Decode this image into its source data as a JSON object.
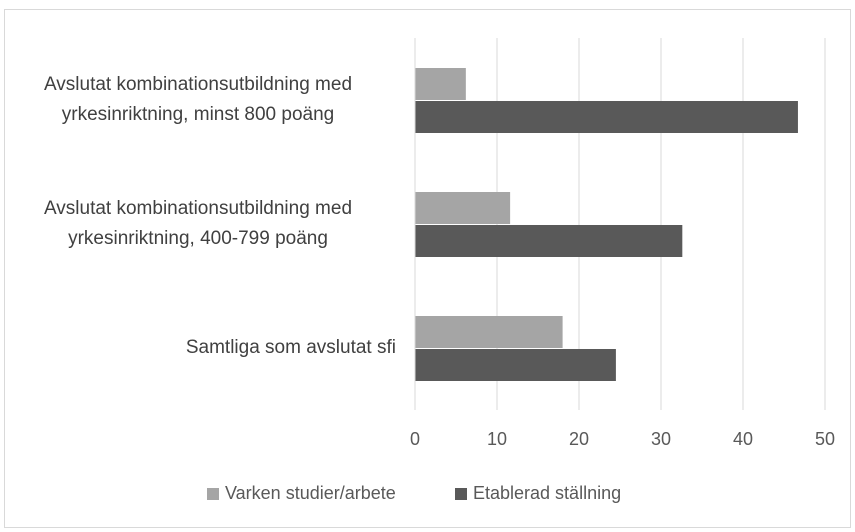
{
  "chart_data": {
    "type": "hbar",
    "categories": [
      "Avslutat kombinationsutbildning med yrkesinriktning, minst 800 poäng",
      "Avslutat kombinationsutbildning med yrkesinriktning, 400-799 poäng",
      "Samtliga som avslutat sfi"
    ],
    "series": [
      {
        "name": "Varken studier/arbete",
        "color": "#a5a5a5",
        "values": [
          6.2,
          11.6,
          18
        ]
      },
      {
        "name": "Etablerad ställning",
        "color": "#595959",
        "values": [
          46.7,
          32.6,
          24.5
        ]
      }
    ],
    "xlim": [
      0,
      50
    ],
    "xticks": [
      0,
      10,
      20,
      30,
      40,
      50
    ],
    "grid": true,
    "legend": "bottom"
  }
}
